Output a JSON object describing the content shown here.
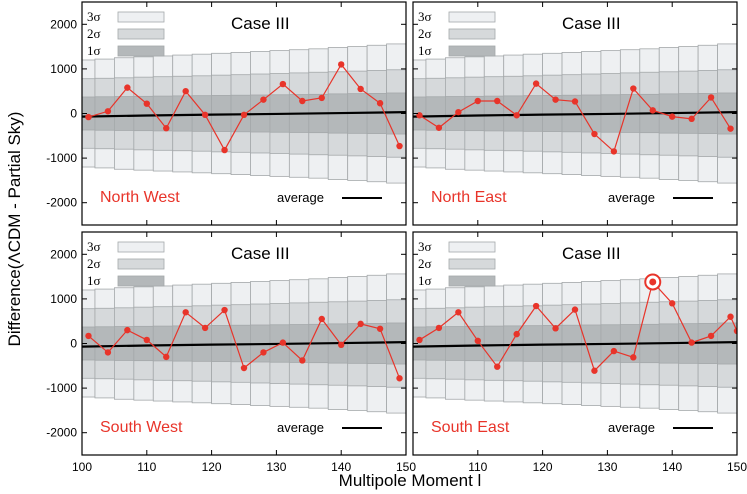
{
  "chart_data": {
    "type": "line",
    "layout": "2x2 panels",
    "xlabel": "Multipole Moment l",
    "ylabel": "Difference(ΛCDM - Partial Sky)",
    "xlim": [
      100,
      150
    ],
    "ylim": [
      -2500,
      2500
    ],
    "x_ticks": [
      100,
      110,
      120,
      130,
      140,
      150
    ],
    "y_ticks": [
      -2000,
      -1000,
      0,
      1000,
      2000
    ],
    "legend": {
      "bands": [
        "3σ",
        "2σ",
        "1σ"
      ],
      "average": "average"
    },
    "colors": {
      "data": "#e8342a",
      "band3": "#eef0f2",
      "band2": "#d6d9db",
      "band1": "#b4b8ba",
      "average": "#000000",
      "edge": "#a4a8aa"
    },
    "bands": {
      "x_start": [
        99,
        102,
        105,
        108,
        111,
        114,
        117,
        120,
        123,
        126,
        129,
        132,
        135,
        138,
        141,
        144,
        147
      ],
      "x_end": [
        102,
        105,
        108,
        111,
        114,
        117,
        120,
        123,
        126,
        129,
        132,
        135,
        138,
        141,
        144,
        147,
        150
      ],
      "sigma1": [
        370,
        375,
        380,
        385,
        390,
        395,
        400,
        405,
        410,
        415,
        420,
        425,
        430,
        440,
        445,
        450,
        460
      ],
      "sigma2": [
        780,
        790,
        800,
        815,
        825,
        835,
        845,
        860,
        870,
        885,
        895,
        910,
        925,
        935,
        950,
        965,
        980
      ],
      "sigma3": [
        1200,
        1220,
        1250,
        1270,
        1290,
        1310,
        1330,
        1350,
        1370,
        1390,
        1410,
        1430,
        1450,
        1480,
        1500,
        1530,
        1560
      ]
    },
    "average_line": {
      "x": [
        100,
        110,
        120,
        130,
        140,
        150
      ],
      "y": [
        -70,
        -45,
        -25,
        -10,
        10,
        30
      ]
    },
    "panels": [
      {
        "title": "Case III",
        "region": "North West",
        "x": [
          101,
          104,
          107,
          110,
          113,
          116,
          119,
          122,
          125,
          128,
          131,
          134,
          137,
          140,
          143,
          146,
          149
        ],
        "y": [
          -80,
          50,
          580,
          220,
          -330,
          500,
          -30,
          -820,
          -30,
          310,
          660,
          280,
          350,
          1100,
          550,
          230,
          -730
        ]
      },
      {
        "title": "Case III",
        "region": "North East",
        "x": [
          101,
          104,
          107,
          110,
          113,
          116,
          119,
          122,
          125,
          128,
          131,
          134,
          137,
          140,
          143,
          146,
          149
        ],
        "y": [
          -40,
          -320,
          30,
          280,
          280,
          -40,
          670,
          310,
          270,
          -460,
          -850,
          560,
          70,
          -70,
          -120,
          360,
          -340
        ]
      },
      {
        "title": "Case III",
        "region": "South West",
        "x": [
          101,
          104,
          107,
          110,
          113,
          116,
          119,
          122,
          125,
          128,
          131,
          134,
          137,
          140,
          143,
          146,
          149
        ],
        "y": [
          170,
          -200,
          300,
          80,
          -300,
          700,
          350,
          750,
          -550,
          -200,
          20,
          -380,
          550,
          -30,
          440,
          330,
          -780
        ]
      },
      {
        "title": "Case III",
        "region": "South East",
        "x": [
          101,
          104,
          107,
          110,
          113,
          116,
          119,
          122,
          125,
          128,
          131,
          134,
          137,
          140,
          143,
          146,
          149,
          150
        ],
        "y": [
          80,
          350,
          700,
          60,
          -520,
          210,
          840,
          340,
          760,
          -610,
          -170,
          -310,
          1380,
          900,
          20,
          170,
          600,
          280
        ],
        "highlight_x": 137
      }
    ]
  }
}
